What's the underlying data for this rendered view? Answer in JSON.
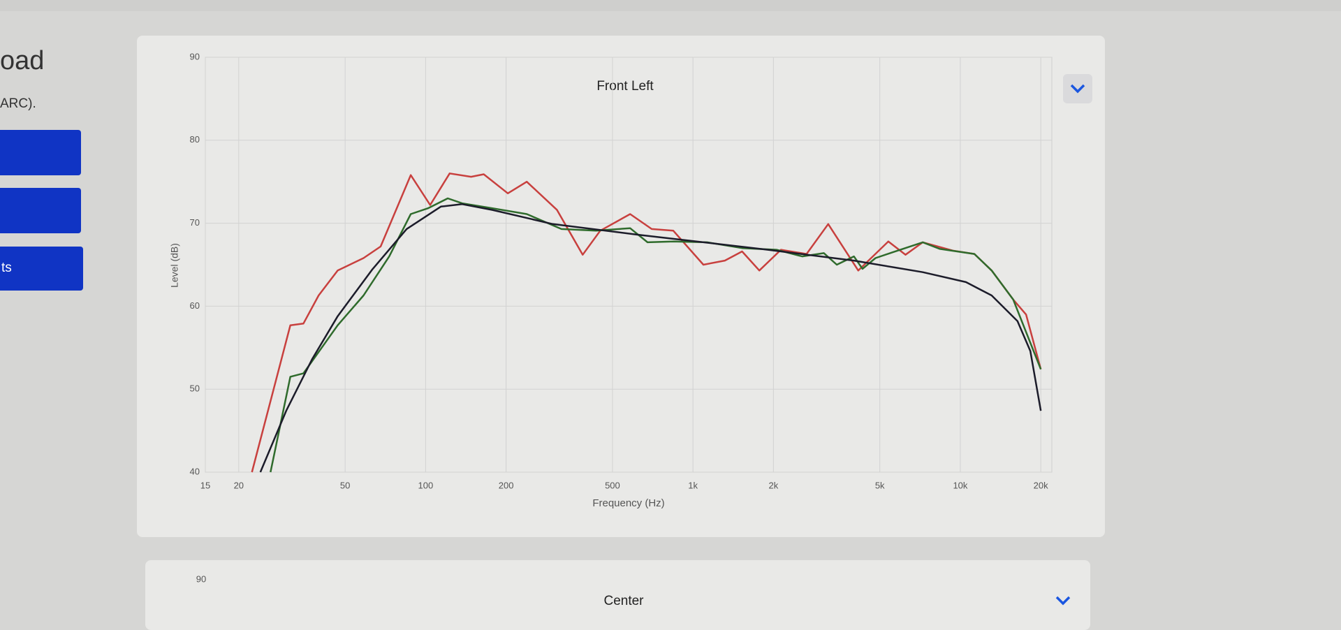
{
  "sidebar": {
    "title": "oad",
    "note": "ARC).",
    "button_label": "ts"
  },
  "chart_data": [
    {
      "type": "line",
      "title": "Front Left",
      "xlabel": "Frequency (Hz)",
      "ylabel": "Level (dB)",
      "xscale": "log",
      "xlim": [
        15,
        22000
      ],
      "ylim": [
        40,
        90
      ],
      "grid": true,
      "xticks": [
        15,
        20,
        50,
        100,
        200,
        500,
        {
          "value": 1000,
          "label": "1k"
        },
        {
          "value": 2000,
          "label": "2k"
        },
        {
          "value": 5000,
          "label": "5k"
        },
        {
          "value": 10000,
          "label": "10k"
        },
        {
          "value": 20000,
          "label": "20k"
        }
      ],
      "yticks": [
        40,
        50,
        60,
        70,
        80,
        90
      ],
      "series": [
        {
          "color": "#c8403e",
          "x": [
            22.4,
            31.2,
            34.9,
            39.8,
            46.9,
            58.6,
            67.9,
            88,
            104,
            123,
            148,
            165,
            203,
            239,
            310,
            387,
            450,
            582,
            701,
            844,
            1094,
            1316,
            1527,
            1771,
            2133,
            2661,
            3206,
            4151,
            5382,
            6238,
            7240,
            9380,
            11290,
            13100,
            15770,
            17620,
            20000
          ],
          "values": [
            40,
            57.7,
            57.9,
            61.3,
            64.3,
            65.8,
            67.2,
            75.8,
            72.2,
            76,
            75.6,
            75.9,
            73.6,
            75,
            71.6,
            66.2,
            69.1,
            71.1,
            69.3,
            69.1,
            65,
            65.5,
            66.6,
            64.3,
            66.8,
            66.3,
            69.9,
            64.3,
            67.8,
            66.2,
            67.7,
            66.7,
            66.3,
            64.3,
            60.8,
            59,
            52.4
          ]
        },
        {
          "color": "#2f6b2c",
          "x": [
            26.3,
            31.2,
            34.9,
            46.9,
            58.6,
            73.1,
            88,
            102,
            121,
            137,
            178,
            239,
            322,
            434,
            582,
            676,
            844,
            1128,
            1527,
            2055,
            2563,
            3089,
            3452,
            4001,
            4307,
            4818,
            5584,
            7240,
            8394,
            11290,
            13100,
            15770,
            20000
          ],
          "values": [
            40,
            51.5,
            51.9,
            57.7,
            61.3,
            66,
            71.1,
            71.8,
            73,
            72.4,
            71.8,
            71.1,
            69.3,
            69.1,
            69.4,
            67.7,
            67.8,
            67.7,
            67,
            66.8,
            66,
            66.4,
            65,
            66,
            64.5,
            65.8,
            66.5,
            67.7,
            66.9,
            66.3,
            64.3,
            60.8,
            52.4
          ]
        },
        {
          "color": "#1c1c2a",
          "x": [
            24.1,
            30.1,
            37.6,
            46.9,
            63.1,
            84.9,
            114,
            137,
            178,
            299,
            628,
            1907,
            4001,
            7240,
            10500,
            13100,
            16360,
            18280,
            20000
          ],
          "values": [
            40,
            47.4,
            53.6,
            58.8,
            64.4,
            69.3,
            72,
            72.3,
            71.6,
            69.9,
            68.6,
            66.8,
            65.5,
            64.1,
            62.9,
            61.3,
            58.2,
            54.6,
            47.4
          ]
        }
      ]
    },
    {
      "type": "line",
      "title": "Center",
      "yticks": [
        90
      ]
    }
  ]
}
